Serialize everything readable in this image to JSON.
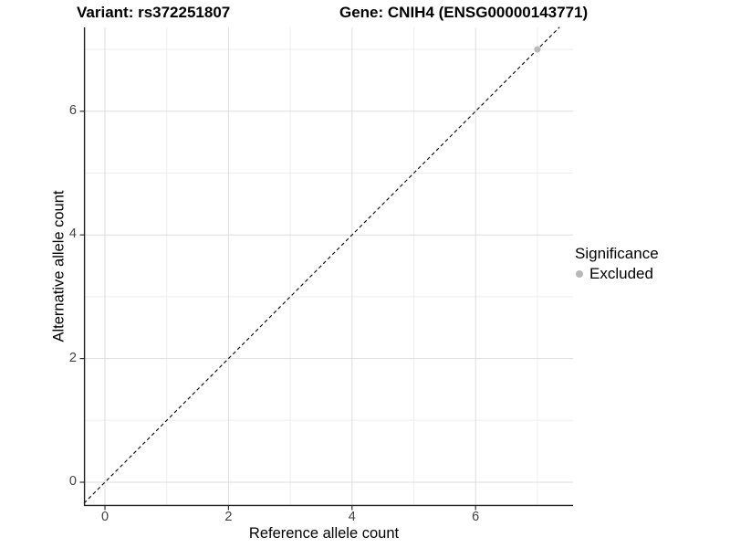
{
  "chart_data": {
    "type": "scatter",
    "titles": {
      "left": "Variant: rs372251807",
      "right": "Gene: CNIH4 (ENSG00000143771)"
    },
    "xlabel": "Reference allele count",
    "ylabel": "Alternative allele count",
    "x_ticks": [
      0,
      2,
      4,
      6
    ],
    "y_ticks": [
      0,
      2,
      4,
      6
    ],
    "x_minor_ticks": [
      1,
      3,
      5,
      7
    ],
    "y_minor_ticks": [
      1,
      3,
      5,
      7
    ],
    "xlim": [
      -0.34,
      7.58
    ],
    "ylim": [
      -0.38,
      7.36
    ],
    "grid": true,
    "identity_line": {
      "equation": "y = x",
      "style": "dashed",
      "color": "#000000"
    },
    "series": [
      {
        "name": "Excluded",
        "color": "#b8b8b8",
        "points": [
          [
            7,
            7
          ]
        ]
      }
    ],
    "legend": {
      "title": "Significance",
      "position": "right",
      "items": [
        {
          "label": "Excluded",
          "color": "#b8b8b8"
        }
      ]
    },
    "colors": {
      "grid_major": "#dedede",
      "grid_minor": "#eeeeee",
      "axis_line": "#1f1f1f",
      "tick_mark": "#333333",
      "tick_label": "#404040",
      "background": "#ffffff"
    }
  }
}
